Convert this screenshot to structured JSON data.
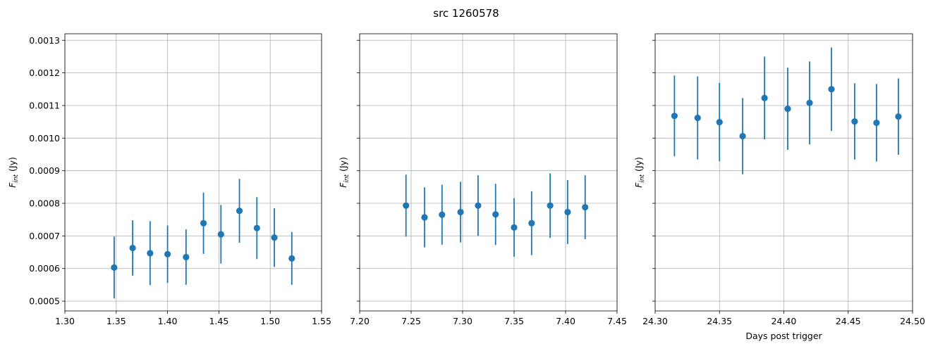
{
  "figure": {
    "title": "src 1260578"
  },
  "chart_data": [
    {
      "type": "scatter",
      "title": "",
      "xlabel": "",
      "ylabel": "F_int (Jy)",
      "xlim": [
        1.3,
        1.55
      ],
      "ylim": [
        0.00047,
        0.00132
      ],
      "grid": true,
      "xticks": [
        1.3,
        1.35,
        1.4,
        1.45,
        1.5,
        1.55
      ],
      "xtick_labels": [
        "1.30",
        "1.35",
        "1.40",
        "1.45",
        "1.50",
        "1.55"
      ],
      "yticks": [
        0.0005,
        0.0006,
        0.0007,
        0.0008,
        0.0009,
        0.001,
        0.0011,
        0.0012,
        0.0013
      ],
      "ytick_labels": [
        "0.0005",
        "0.0006",
        "0.0007",
        "0.0008",
        "0.0009",
        "0.0010",
        "0.0011",
        "0.0012",
        "0.0013"
      ],
      "show_ytick_labels": true,
      "color": "#1f77b4",
      "points": [
        {
          "x": 1.348,
          "y": 0.000603,
          "err": 9.5e-05
        },
        {
          "x": 1.366,
          "y": 0.000663,
          "err": 8.5e-05
        },
        {
          "x": 1.383,
          "y": 0.000647,
          "err": 9.8e-05
        },
        {
          "x": 1.4,
          "y": 0.000644,
          "err": 8.8e-05
        },
        {
          "x": 1.418,
          "y": 0.000635,
          "err": 8.5e-05
        },
        {
          "x": 1.435,
          "y": 0.000739,
          "err": 9.4e-05
        },
        {
          "x": 1.452,
          "y": 0.000705,
          "err": 9e-05
        },
        {
          "x": 1.47,
          "y": 0.000777,
          "err": 9.8e-05
        },
        {
          "x": 1.487,
          "y": 0.000724,
          "err": 9.5e-05
        },
        {
          "x": 1.504,
          "y": 0.000695,
          "err": 9e-05
        },
        {
          "x": 1.521,
          "y": 0.000631,
          "err": 8.1e-05
        }
      ]
    },
    {
      "type": "scatter",
      "title": "",
      "xlabel": "",
      "ylabel": "F_int (Jy)",
      "xlim": [
        7.2,
        7.45
      ],
      "ylim": [
        0.00047,
        0.00132
      ],
      "grid": true,
      "xticks": [
        7.2,
        7.25,
        7.3,
        7.35,
        7.4,
        7.45
      ],
      "xtick_labels": [
        "7.20",
        "7.25",
        "7.30",
        "7.35",
        "7.40",
        "7.45"
      ],
      "yticks": [
        0.0005,
        0.0006,
        0.0007,
        0.0008,
        0.0009,
        0.001,
        0.0011,
        0.0012,
        0.0013
      ],
      "ytick_labels": [],
      "show_ytick_labels": false,
      "color": "#1f77b4",
      "points": [
        {
          "x": 7.245,
          "y": 0.000793,
          "err": 9.5e-05
        },
        {
          "x": 7.263,
          "y": 0.000757,
          "err": 9.2e-05
        },
        {
          "x": 7.28,
          "y": 0.000765,
          "err": 9.2e-05
        },
        {
          "x": 7.298,
          "y": 0.000773,
          "err": 9.3e-05
        },
        {
          "x": 7.315,
          "y": 0.000793,
          "err": 9.3e-05
        },
        {
          "x": 7.332,
          "y": 0.000766,
          "err": 9.4e-05
        },
        {
          "x": 7.35,
          "y": 0.000726,
          "err": 9e-05
        },
        {
          "x": 7.367,
          "y": 0.000739,
          "err": 9.8e-05
        },
        {
          "x": 7.385,
          "y": 0.000793,
          "err": 9.9e-05
        },
        {
          "x": 7.402,
          "y": 0.000773,
          "err": 9.8e-05
        },
        {
          "x": 7.419,
          "y": 0.000788,
          "err": 9.8e-05
        }
      ]
    },
    {
      "type": "scatter",
      "title": "",
      "xlabel": "Days post trigger",
      "ylabel": "F_int (Jy)",
      "xlim": [
        24.3,
        24.5
      ],
      "ylim": [
        0.00047,
        0.00132
      ],
      "grid": true,
      "xticks": [
        24.3,
        24.35,
        24.4,
        24.45,
        24.5
      ],
      "xtick_labels": [
        "24.30",
        "24.35",
        "24.40",
        "24.45",
        "24.50"
      ],
      "yticks": [
        0.0005,
        0.0006,
        0.0007,
        0.0008,
        0.0009,
        0.001,
        0.0011,
        0.0012,
        0.0013
      ],
      "ytick_labels": [],
      "show_ytick_labels": false,
      "color": "#1f77b4",
      "points": [
        {
          "x": 24.315,
          "y": 0.001068,
          "err": 0.000124
        },
        {
          "x": 24.333,
          "y": 0.001062,
          "err": 0.000127
        },
        {
          "x": 24.35,
          "y": 0.001049,
          "err": 0.00012
        },
        {
          "x": 24.368,
          "y": 0.001006,
          "err": 0.000117
        },
        {
          "x": 24.385,
          "y": 0.001123,
          "err": 0.000127
        },
        {
          "x": 24.403,
          "y": 0.00109,
          "err": 0.000126
        },
        {
          "x": 24.42,
          "y": 0.001108,
          "err": 0.000127
        },
        {
          "x": 24.437,
          "y": 0.00115,
          "err": 0.000128
        },
        {
          "x": 24.455,
          "y": 0.001051,
          "err": 0.000117
        },
        {
          "x": 24.472,
          "y": 0.001047,
          "err": 0.000119
        },
        {
          "x": 24.489,
          "y": 0.001066,
          "err": 0.000117
        }
      ]
    }
  ]
}
